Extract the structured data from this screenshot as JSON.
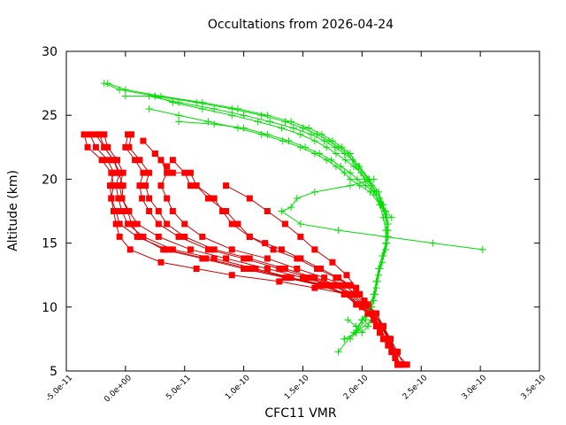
{
  "chart_data": {
    "type": "line",
    "title": "Occultations from 2026-04-24",
    "xlabel": "CFC11 VMR",
    "ylabel": "Altitude (km)",
    "xlim": [
      -5e-11,
      3.5e-10
    ],
    "ylim": [
      5,
      30
    ],
    "x_ticks": [
      -5e-11,
      0,
      5e-11,
      1e-10,
      1.5e-10,
      2e-10,
      2.5e-10,
      3e-10,
      3.5e-10
    ],
    "x_tick_labels": [
      "-5.0e-11",
      "0.0e+00",
      "5.0e-11",
      "1.0e-10",
      "1.5e-10",
      "2.0e-10",
      "2.5e-10",
      "3.0e-10",
      "3.5e-10"
    ],
    "y_ticks": [
      5,
      10,
      15,
      20,
      25,
      30
    ],
    "y_tick_labels": [
      "5",
      "10",
      "15",
      "20",
      "25",
      "30"
    ],
    "grid": false,
    "legend": "none",
    "colors": {
      "red_series": "#ff0000",
      "red_line": "#cc0000",
      "green_series": "#00dd00"
    },
    "series_red": [
      {
        "x": [
          -3.5e-11,
          -3.2e-11,
          -2e-11,
          -1.2e-11,
          -1e-11,
          -1.2e-11,
          -1e-11,
          -8e-12,
          -5e-12,
          4e-12,
          3e-11,
          6e-11,
          9e-11,
          1.3e-10,
          1.6e-10,
          1.88e-10,
          2e-10,
          2.1e-10,
          2.15e-10,
          2.22e-10,
          2.28e-10,
          2.33e-10
        ],
        "y": [
          23.5,
          22.5,
          21.5,
          20.5,
          19.5,
          18.5,
          17.5,
          16.5,
          15.5,
          14.5,
          13.5,
          13.0,
          12.5,
          12.0,
          11.5,
          11.0,
          10.0,
          9.0,
          8.0,
          7.0,
          6.0,
          5.5
        ]
      },
      {
        "x": [
          -2.5e-11,
          -1.8e-11,
          -1e-11,
          -5e-12,
          -8e-12,
          -6e-12,
          -3e-12,
          2e-12,
          1.5e-11,
          4e-11,
          7.5e-11,
          1.1e-10,
          1.4e-10,
          1.7e-10,
          1.85e-10,
          1.95e-10,
          2.05e-10,
          2.12e-10,
          2.18e-10,
          2.25e-10,
          2.3e-10
        ],
        "y": [
          23.5,
          22.5,
          21.5,
          20.5,
          19.5,
          18.5,
          17.5,
          16.5,
          15.5,
          14.5,
          13.8,
          13.0,
          12.3,
          11.7,
          11.0,
          10.2,
          9.5,
          8.5,
          7.5,
          6.5,
          5.5
        ]
      },
      {
        "x": [
          -1.8e-11,
          -1.5e-11,
          -7e-12,
          -2e-12,
          -5e-12,
          -3e-12,
          3e-12,
          1e-11,
          2.8e-11,
          5.5e-11,
          8.5e-11,
          1.2e-10,
          1.5e-10,
          1.75e-10,
          1.9e-10,
          2e-10,
          2.1e-10,
          2.17e-10,
          2.24e-10,
          2.3e-10,
          2.35e-10
        ],
        "y": [
          23.5,
          22.5,
          21.5,
          20.5,
          19.5,
          18.5,
          17.5,
          16.5,
          15.5,
          14.5,
          13.8,
          13.0,
          12.3,
          11.7,
          11.0,
          10.2,
          9.5,
          8.5,
          7.5,
          6.5,
          5.5
        ]
      },
      {
        "x": [
          -2.2e-11,
          -1.8e-11,
          -1e-11,
          -6e-12,
          -2e-12,
          -3e-12,
          2e-12,
          5e-12,
          1.2e-11,
          3.2e-11,
          6.5e-11,
          1e-10,
          1.35e-10,
          1.65e-10,
          1.85e-10,
          1.97e-10,
          2.06e-10,
          2.14e-10,
          2.2e-10,
          2.27e-10,
          2.3e-10
        ],
        "y": [
          23.5,
          22.5,
          21.5,
          20.5,
          19.5,
          18.5,
          17.5,
          16.5,
          15.5,
          14.5,
          13.8,
          13.0,
          12.3,
          11.7,
          11.0,
          10.2,
          9.5,
          8.5,
          7.5,
          6.5,
          5.5
        ]
      },
      {
        "x": [
          -3e-11,
          -2.5e-11,
          -1.5e-11,
          -1e-11,
          -1.3e-11,
          -1.2e-11,
          -8e-12,
          -5e-12,
          1e-11,
          3.5e-11,
          6.8e-11,
          1.05e-10,
          1.38e-10,
          1.68e-10,
          1.87e-10,
          1.98e-10,
          2.08e-10,
          2.16e-10,
          2.22e-10,
          2.28e-10,
          2.32e-10
        ],
        "y": [
          23.5,
          22.5,
          21.5,
          20.5,
          19.5,
          18.5,
          17.5,
          16.5,
          15.5,
          14.5,
          13.8,
          13.0,
          12.3,
          11.7,
          11.0,
          10.2,
          9.5,
          8.5,
          7.5,
          6.5,
          5.5
        ]
      },
      {
        "x": [
          5e-12,
          3e-12,
          1.2e-11,
          2e-11,
          1.7e-11,
          2e-11,
          2.8e-11,
          3.5e-11,
          5e-11,
          7.5e-11,
          1.05e-10,
          1.35e-10,
          1.6e-10,
          1.8e-10,
          1.92e-10,
          2.02e-10,
          2.1e-10,
          2.18e-10,
          2.24e-10,
          2.28e-10,
          2.38e-10
        ],
        "y": [
          23.5,
          22.5,
          21.5,
          20.5,
          19.5,
          18.5,
          17.5,
          16.5,
          15.5,
          14.5,
          13.8,
          13.0,
          12.3,
          11.7,
          11.0,
          10.2,
          9.5,
          8.5,
          7.5,
          6.5,
          5.5
        ]
      },
      {
        "x": [
          2e-12,
          0.0,
          8e-12,
          1.5e-11,
          1.2e-11,
          1.4e-11,
          2e-11,
          2.8e-11,
          4.5e-11,
          7e-11,
          1e-10,
          1.3e-10,
          1.55e-10,
          1.78e-10,
          1.9e-10,
          2e-10,
          2.07e-10,
          2.15e-10,
          2.2e-10,
          2.25e-10,
          2.3e-10
        ],
        "y": [
          23.5,
          22.5,
          21.5,
          20.5,
          19.5,
          18.5,
          17.5,
          16.5,
          15.5,
          14.5,
          13.8,
          13.0,
          12.3,
          11.7,
          11.0,
          10.2,
          9.5,
          8.5,
          7.5,
          6.5,
          5.5
        ]
      },
      {
        "x": [
          1.5e-11,
          2.5e-11,
          3e-11,
          3.5e-11,
          3e-11,
          3.5e-11,
          4e-11,
          5e-11,
          6.5e-11,
          9e-11,
          1.2e-10,
          1.45e-10,
          1.68e-10,
          1.85e-10,
          1.95e-10,
          2.03e-10,
          2.1e-10,
          2.17e-10,
          2.22e-10,
          2.27e-10,
          2.32e-10
        ],
        "y": [
          23.0,
          22.0,
          21.5,
          20.5,
          19.5,
          18.5,
          17.5,
          16.5,
          15.5,
          14.5,
          13.8,
          13.0,
          12.3,
          11.7,
          11.0,
          10.2,
          9.5,
          8.5,
          7.5,
          6.5,
          5.5
        ]
      },
      {
        "x": [
          2.5e-11,
          3.5e-11,
          4e-11,
          5.5e-11,
          6e-11,
          7.5e-11,
          8.2e-11,
          9e-11,
          1.05e-10,
          1.25e-10,
          1.45e-10,
          1.62e-10,
          1.78e-10,
          1.9e-10,
          1.98e-10,
          2.05e-10,
          2.12e-10,
          2.18e-10,
          2.23e-10,
          2.28e-10
        ],
        "y": [
          22.0,
          21.0,
          20.5,
          20.5,
          19.5,
          18.5,
          17.5,
          16.5,
          15.5,
          14.5,
          13.8,
          13.0,
          12.3,
          11.7,
          11.0,
          10.2,
          9.5,
          8.5,
          7.5,
          6.5
        ]
      },
      {
        "x": [
          4e-11,
          5e-11,
          5.5e-11,
          6e-11,
          7e-11,
          8.5e-11,
          9.5e-11,
          1.05e-10,
          1.18e-10,
          1.32e-10,
          1.48e-10,
          1.65e-10,
          1.8e-10,
          1.9e-10,
          1.98e-10,
          2.05e-10,
          2.12e-10,
          2.18e-10,
          2.22e-10,
          2.27e-10
        ],
        "y": [
          21.5,
          20.5,
          19.5,
          19.5,
          18.5,
          17.5,
          16.5,
          15.5,
          15.0,
          14.5,
          13.8,
          13.0,
          12.3,
          11.7,
          11.0,
          10.2,
          9.5,
          8.5,
          7.5,
          6.5
        ]
      },
      {
        "x": [
          8.5e-11,
          1.05e-10,
          1.2e-10,
          1.35e-10,
          1.48e-10,
          1.6e-10,
          1.75e-10,
          1.87e-10,
          1.95e-10,
          2.02e-10,
          2.1e-10,
          2.17e-10,
          2.22e-10,
          2.28e-10
        ],
        "y": [
          19.5,
          18.5,
          17.5,
          16.5,
          15.5,
          14.5,
          13.5,
          12.5,
          11.5,
          10.5,
          9.5,
          8.5,
          7.5,
          6.5
        ]
      }
    ],
    "series_green": [
      {
        "x": [
          -1.8e-11,
          -5e-12,
          2.5e-11,
          6e-11,
          9e-11,
          1.15e-10,
          1.35e-10,
          1.5e-10,
          1.62e-10,
          1.72e-10,
          1.8e-10,
          1.88e-10,
          1.95e-10,
          2.02e-10,
          2.1e-10,
          2.15e-10,
          2.18e-10,
          2.2e-10,
          2.2e-10,
          2.18e-10,
          2.15e-10,
          2.12e-10,
          2.1e-10,
          2.08e-10,
          2.05e-10,
          2e-10,
          1.95e-10,
          1.9e-10
        ],
        "y": [
          27.5,
          27.0,
          26.5,
          26.0,
          25.5,
          25.0,
          24.5,
          24.0,
          23.5,
          23.0,
          22.5,
          22.0,
          21.0,
          20.0,
          19.0,
          18.0,
          17.0,
          16.0,
          15.0,
          14.0,
          13.0,
          12.0,
          11.0,
          10.0,
          9.5,
          9.0,
          8.0,
          7.5
        ]
      },
      {
        "x": [
          -1.5e-11,
          0.0,
          3e-11,
          6.5e-11,
          9.5e-11,
          1.2e-10,
          1.4e-10,
          1.55e-10,
          1.66e-10,
          1.75e-10,
          1.83e-10,
          1.9e-10,
          1.97e-10,
          2.05e-10,
          2.12e-10,
          2.17e-10,
          2.2e-10,
          2.21e-10,
          2.2e-10,
          2.17e-10,
          2.14e-10,
          2.12e-10,
          2.1e-10,
          2.06e-10,
          2e-10,
          1.93e-10,
          1.8e-10
        ],
        "y": [
          27.5,
          27.0,
          26.5,
          26.0,
          25.5,
          25.0,
          24.5,
          24.0,
          23.5,
          23.0,
          22.5,
          22.0,
          21.0,
          20.0,
          19.0,
          18.0,
          17.0,
          16.0,
          15.0,
          14.0,
          13.0,
          12.0,
          11.0,
          10.0,
          9.0,
          8.0,
          6.5
        ]
      },
      {
        "x": [
          0.0,
          2e-11,
          4.5e-11,
          7.5e-11,
          1e-10,
          1.22e-10,
          1.42e-10,
          1.57e-10,
          1.68e-10,
          1.77e-10,
          1.85e-10,
          1.92e-10,
          1.98e-10,
          2.06e-10,
          2.14e-10,
          2.18e-10,
          2.21e-10,
          2.22e-10,
          2.21e-10,
          2.18e-10,
          2.15e-10,
          2.13e-10,
          2.11e-10,
          2.08e-10,
          2.03e-10,
          1.95e-10,
          1.85e-10
        ],
        "y": [
          26.5,
          26.5,
          26.0,
          25.5,
          25.0,
          24.5,
          24.0,
          23.5,
          23.0,
          22.5,
          22.0,
          21.5,
          21.0,
          20.0,
          19.0,
          18.0,
          17.0,
          16.0,
          15.0,
          14.0,
          13.0,
          12.0,
          11.0,
          10.0,
          9.0,
          8.0,
          7.5
        ]
      },
      {
        "x": [
          2.5e-11,
          4e-11,
          6.5e-11,
          9e-11,
          1.12e-10,
          1.32e-10,
          1.48e-10,
          1.6e-10,
          1.7e-10,
          1.78e-10,
          1.86e-10,
          1.93e-10,
          1.99e-10,
          2.08e-10,
          2.15e-10,
          2.2e-10,
          2.22e-10,
          2.22e-10,
          2.2e-10,
          2.17e-10,
          2.14e-10,
          2.12e-10,
          2.1e-10,
          2.06e-10,
          2e-10
        ],
        "y": [
          26.5,
          26.0,
          25.5,
          25.0,
          24.5,
          24.0,
          23.5,
          23.0,
          22.5,
          22.0,
          21.5,
          21.0,
          20.5,
          19.5,
          18.5,
          17.5,
          16.5,
          15.5,
          14.5,
          13.5,
          12.5,
          11.5,
          10.5,
          9.5,
          9.0
        ]
      },
      {
        "x": [
          2e-11,
          4.5e-11,
          7e-11,
          9.5e-11,
          1.15e-10,
          1.33e-10,
          1.48e-10,
          1.6e-10,
          1.7e-10,
          1.78e-10,
          1.85e-10,
          1.9e-10,
          1.98e-10,
          2.07e-10,
          2.15e-10,
          2.2e-10,
          2.25e-10
        ],
        "y": [
          25.5,
          25.0,
          24.5,
          24.0,
          23.5,
          23.0,
          22.5,
          22.0,
          21.5,
          21.0,
          20.5,
          20.0,
          19.5,
          19.0,
          18.0,
          17.5,
          17.0
        ]
      },
      {
        "x": [
          4.5e-11,
          7.5e-11,
          1e-10,
          1.2e-10,
          1.38e-10,
          1.52e-10,
          1.64e-10,
          1.74e-10,
          1.82e-10,
          1.9e-10,
          1.96e-10,
          2.03e-10,
          2.1e-10,
          2.16e-10,
          2.2e-10
        ],
        "y": [
          24.5,
          24.3,
          24.0,
          23.5,
          23.0,
          22.5,
          22.0,
          21.5,
          21.0,
          20.5,
          20.0,
          19.5,
          19.0,
          18.0,
          17.0
        ]
      },
      {
        "x": [
          2.1e-10,
          1.9e-10,
          1.6e-10,
          1.45e-10,
          1.4e-10,
          1.32e-10,
          1.48e-10,
          1.8e-10,
          2.2e-10,
          2.6e-10,
          3.02e-10
        ],
        "y": [
          20.0,
          19.5,
          19.0,
          18.5,
          17.8,
          17.5,
          16.5,
          16.0,
          15.5,
          15.0,
          14.5
        ]
      },
      {
        "x": [
          1.88e-10,
          1.95e-10,
          2e-10,
          2.05e-10,
          2.08e-10,
          1.95e-10,
          1.85e-10
        ],
        "y": [
          9.0,
          8.5,
          8.0,
          8.5,
          9.0,
          8.0,
          7.5
        ]
      }
    ]
  }
}
